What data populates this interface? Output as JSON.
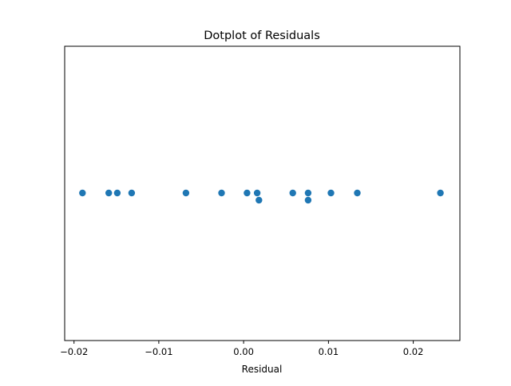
{
  "chart_data": {
    "type": "scatter",
    "title": "Dotplot of Residuals",
    "xlabel": "Residual",
    "ylabel": "",
    "xlim": [
      -0.0211,
      0.0255
    ],
    "xticks": [
      -0.02,
      -0.01,
      0.0,
      0.01,
      0.02
    ],
    "xtick_labels": [
      "−0.02",
      "−0.01",
      "0.00",
      "0.01",
      "0.02"
    ],
    "grid": false,
    "legend": "none",
    "marker_color": "#1f77b4",
    "points": [
      {
        "x": -0.019,
        "stack": 0
      },
      {
        "x": -0.0159,
        "stack": 0
      },
      {
        "x": -0.0149,
        "stack": 0
      },
      {
        "x": -0.0132,
        "stack": 0
      },
      {
        "x": -0.0068,
        "stack": 0
      },
      {
        "x": -0.0026,
        "stack": 0
      },
      {
        "x": 0.0004,
        "stack": 0
      },
      {
        "x": 0.0016,
        "stack": 0
      },
      {
        "x": 0.0018,
        "stack": 1
      },
      {
        "x": 0.0058,
        "stack": 0
      },
      {
        "x": 0.0076,
        "stack": 0
      },
      {
        "x": 0.0076,
        "stack": 1
      },
      {
        "x": 0.0103,
        "stack": 0
      },
      {
        "x": 0.0134,
        "stack": 0
      },
      {
        "x": 0.0232,
        "stack": 0
      }
    ]
  }
}
